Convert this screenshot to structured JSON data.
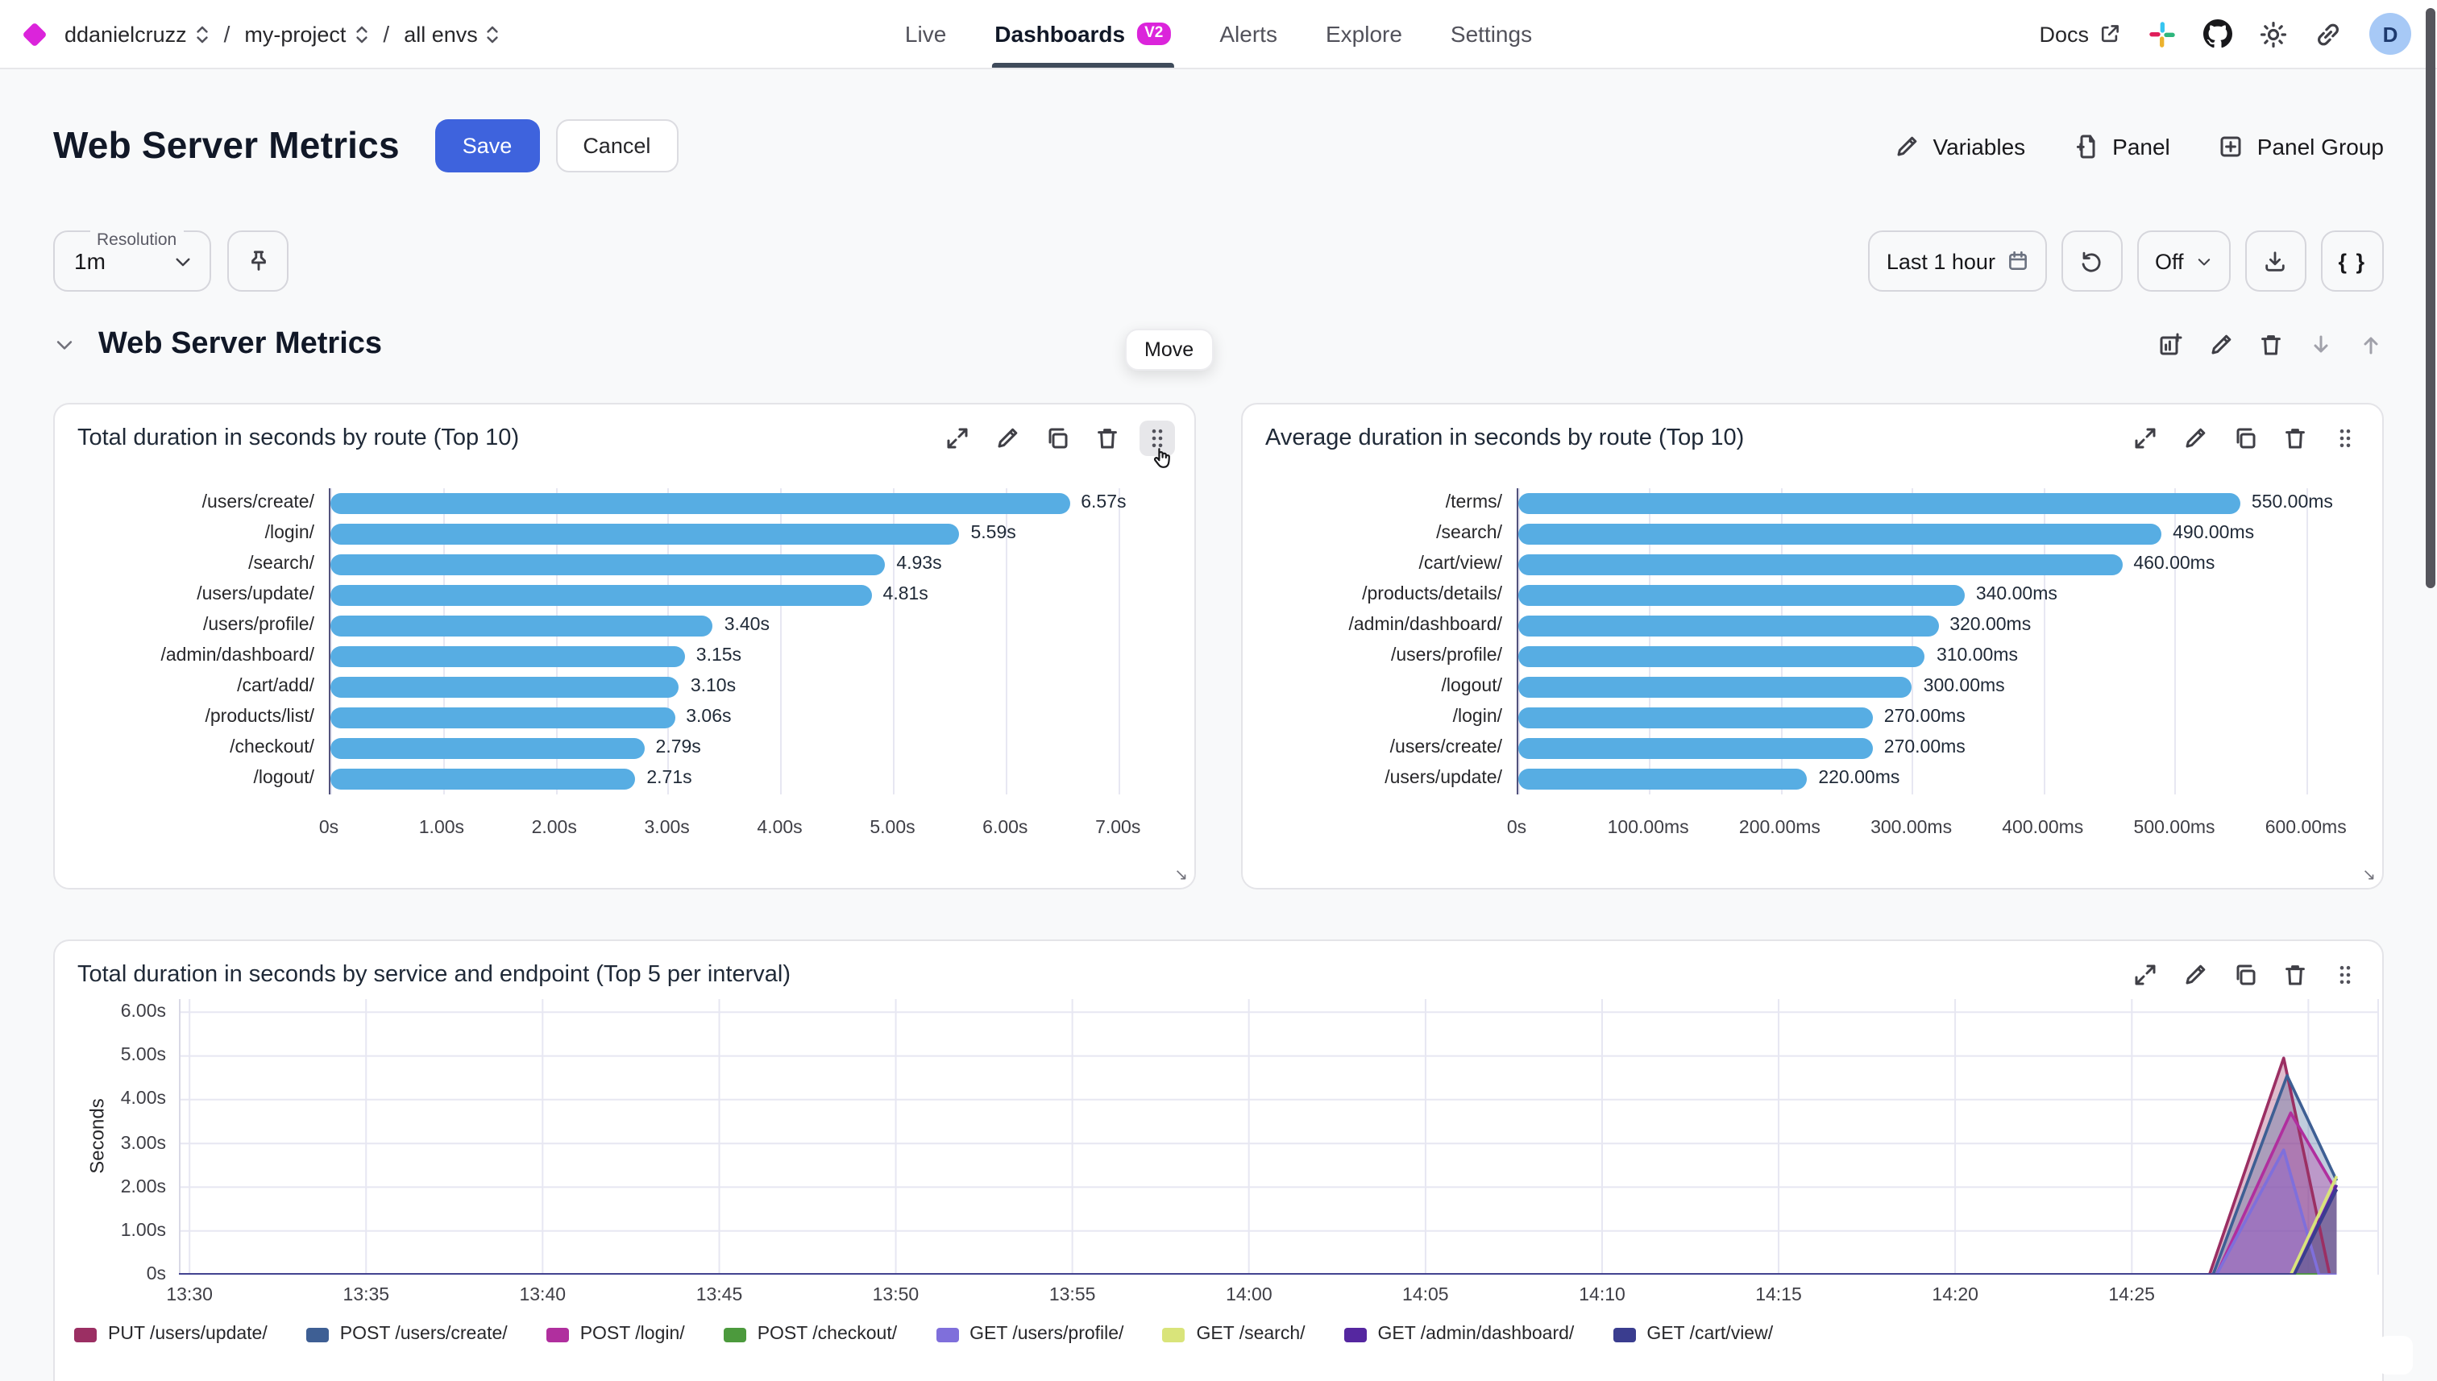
{
  "nav": {
    "breadcrumbs": [
      {
        "label": "ddanielcruzz"
      },
      {
        "label": "my-project"
      },
      {
        "label": "all envs"
      }
    ],
    "tabs": [
      {
        "label": "Live",
        "active": false
      },
      {
        "label": "Dashboards",
        "active": true,
        "badge": "V2"
      },
      {
        "label": "Alerts",
        "active": false
      },
      {
        "label": "Explore",
        "active": false
      },
      {
        "label": "Settings",
        "active": false
      }
    ],
    "docs_label": "Docs",
    "right_icons": [
      "external-link-icon",
      "slack-icon",
      "github-icon",
      "theme-light-icon",
      "share-link-icon"
    ],
    "avatar_initial": "D"
  },
  "header": {
    "title": "Web Server Metrics",
    "save_label": "Save",
    "cancel_label": "Cancel",
    "actions": [
      {
        "label": "Variables",
        "icon": "pencil-icon"
      },
      {
        "label": "Panel",
        "icon": "file-plus-icon"
      },
      {
        "label": "Panel Group",
        "icon": "plus-square-icon"
      }
    ]
  },
  "toolbar": {
    "resolution_label": "Resolution",
    "resolution_value": "1m",
    "pin_icon": "pin-icon",
    "time_range": "Last 1 hour",
    "time_range_icon": "calendar-icon",
    "refresh_icon": "refresh-icon",
    "refresh_value": "Off",
    "download_icon": "download-icon",
    "braces_label": "{ }"
  },
  "section": {
    "title": "Web Server Metrics",
    "icons": [
      "add-panel-icon",
      "edit-icon",
      "delete-icon",
      "move-down-icon",
      "move-up-icon"
    ]
  },
  "tooltip": {
    "label": "Move"
  },
  "panel_action_icons": [
    "expand-icon",
    "edit-icon",
    "copy-icon",
    "delete-icon",
    "drag-handle-icon"
  ],
  "colors": {
    "accent_blue": "#3E63DD",
    "brand_magenta": "#DB24DB",
    "bar_fill": "#57ADE3",
    "active_tab_underline": "#3f4b5b",
    "grid_line": "#e7e7f2",
    "axis_line": "#52527d"
  },
  "chart_data": [
    {
      "type": "bar",
      "orientation": "horizontal",
      "title": "Total duration in seconds by route (Top 10)",
      "categories": [
        "/users/create/",
        "/login/",
        "/search/",
        "/users/update/",
        "/users/profile/",
        "/admin/dashboard/",
        "/cart/add/",
        "/products/list/",
        "/checkout/",
        "/logout/"
      ],
      "values": [
        6.57,
        5.59,
        4.93,
        4.81,
        3.4,
        3.15,
        3.1,
        3.06,
        2.79,
        2.71
      ],
      "value_labels": [
        "6.57s",
        "5.59s",
        "4.93s",
        "4.81s",
        "3.40s",
        "3.15s",
        "3.10s",
        "3.06s",
        "2.79s",
        "2.71s"
      ],
      "x_ticks": [
        0,
        1,
        2,
        3,
        4,
        5,
        6,
        7
      ],
      "x_tick_labels": [
        "0s",
        "1.00s",
        "2.00s",
        "3.00s",
        "4.00s",
        "5.00s",
        "6.00s",
        "7.00s"
      ],
      "axis_max": 7.42,
      "grid": true
    },
    {
      "type": "bar",
      "orientation": "horizontal",
      "title": "Average duration in seconds by route (Top 10)",
      "categories": [
        "/terms/",
        "/search/",
        "/cart/view/",
        "/products/details/",
        "/admin/dashboard/",
        "/users/profile/",
        "/logout/",
        "/login/",
        "/users/create/",
        "/users/update/"
      ],
      "values": [
        550,
        490,
        460,
        340,
        320,
        310,
        300,
        270,
        270,
        220
      ],
      "value_labels": [
        "550.00ms",
        "490.00ms",
        "460.00ms",
        "340.00ms",
        "320.00ms",
        "310.00ms",
        "300.00ms",
        "270.00ms",
        "270.00ms",
        "220.00ms"
      ],
      "x_ticks": [
        0,
        100,
        200,
        300,
        400,
        500,
        600
      ],
      "x_tick_labels": [
        "0s",
        "100.00ms",
        "200.00ms",
        "300.00ms",
        "400.00ms",
        "500.00ms",
        "600.00ms"
      ],
      "axis_max": 636,
      "grid": true
    },
    {
      "type": "area",
      "title": "Total duration in seconds by service and endpoint (Top 5 per interval)",
      "ylabel": "Seconds",
      "y_ticks": [
        6,
        5,
        4,
        3,
        2,
        1,
        0
      ],
      "y_tick_labels": [
        "6.00s",
        "5.00s",
        "4.00s",
        "3.00s",
        "2.00s",
        "1.00s",
        "0s"
      ],
      "ylim": [
        0,
        6.3
      ],
      "x_domain_minutes_from_1330": [
        -0.3,
        62
      ],
      "x_ticks_minutes": [
        0,
        5,
        10,
        15,
        20,
        25,
        30,
        35,
        40,
        45,
        50,
        55,
        60
      ],
      "x_tick_labels": [
        "13:30",
        "13:35",
        "13:40",
        "13:45",
        "13:50",
        "13:55",
        "14:00",
        "14:05",
        "14:10",
        "14:15",
        "14:20",
        "14:25",
        ""
      ],
      "grid": true,
      "legend_position": "bottom",
      "series": [
        {
          "name": "PUT /users/update/",
          "color": "#9B2F63",
          "points": [
            [
              -0.3,
              0
            ],
            [
              57.2,
              0
            ],
            [
              59.3,
              4.95
            ],
            [
              60.6,
              0
            ],
            [
              60.8,
              0
            ]
          ]
        },
        {
          "name": "POST /users/create/",
          "color": "#3E5F94",
          "points": [
            [
              -0.3,
              0
            ],
            [
              57.3,
              0
            ],
            [
              59.4,
              4.55
            ],
            [
              60.8,
              2.15
            ]
          ]
        },
        {
          "name": "POST /login/",
          "color": "#B02F9E",
          "points": [
            [
              -0.3,
              0
            ],
            [
              57.4,
              0
            ],
            [
              59.5,
              3.7
            ],
            [
              60.8,
              1.9
            ]
          ]
        },
        {
          "name": "POST /checkout/",
          "color": "#4C9A3D",
          "points": [
            [
              -0.3,
              0
            ],
            [
              60.8,
              0
            ]
          ]
        },
        {
          "name": "GET /users/profile/",
          "color": "#7F6FDB",
          "points": [
            [
              -0.3,
              0
            ],
            [
              57.4,
              0
            ],
            [
              59.3,
              2.85
            ],
            [
              60.3,
              0
            ],
            [
              60.8,
              0
            ]
          ]
        },
        {
          "name": "GET /search/",
          "color": "#D9E47A",
          "points": [
            [
              -0.3,
              0
            ],
            [
              59.5,
              0
            ],
            [
              60.8,
              2.25
            ]
          ]
        },
        {
          "name": "GET /admin/dashboard/",
          "color": "#5527A0",
          "points": [
            [
              -0.3,
              0
            ],
            [
              59.6,
              0
            ],
            [
              60.8,
              2.05
            ]
          ]
        },
        {
          "name": "GET /cart/view/",
          "color": "#3A3D8F",
          "points": [
            [
              -0.3,
              0
            ],
            [
              59.6,
              0
            ],
            [
              60.8,
              1.95
            ]
          ]
        }
      ]
    }
  ]
}
